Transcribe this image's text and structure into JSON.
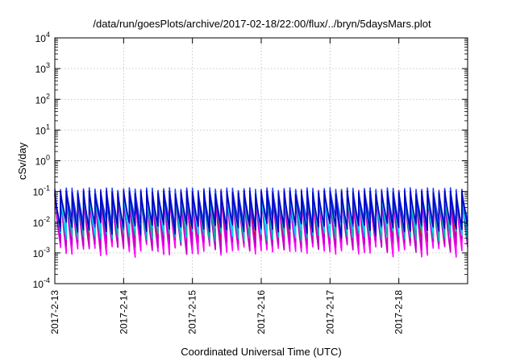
{
  "chart_data": {
    "type": "line",
    "title": "/data/run/goesPlots/archive/2017-02-18/22:00/flux/../bryn/5daysMars.plot",
    "xlabel": "Coordinated Universal Time (UTC)",
    "ylabel": "cSv/day",
    "y_scale": "log",
    "ylim": [
      0.0001,
      10000
    ],
    "y_ticks": [
      {
        "value": 0.0001,
        "base": "10",
        "exp": "-4"
      },
      {
        "value": 0.001,
        "base": "10",
        "exp": "-3"
      },
      {
        "value": 0.01,
        "base": "10",
        "exp": "-2"
      },
      {
        "value": 0.1,
        "base": "10",
        "exp": "-1"
      },
      {
        "value": 1,
        "base": "10",
        "exp": "0"
      },
      {
        "value": 10,
        "base": "10",
        "exp": "1"
      },
      {
        "value": 100,
        "base": "10",
        "exp": "2"
      },
      {
        "value": 1000,
        "base": "10",
        "exp": "3"
      },
      {
        "value": 10000,
        "base": "10",
        "exp": "4"
      }
    ],
    "xlim": [
      "2017-02-13",
      "2017-02-19"
    ],
    "x_ticks": [
      "2017-2-13",
      "2017-2-14",
      "2017-2-15",
      "2017-2-16",
      "2017-2-17",
      "2017-2-18"
    ],
    "grid": true,
    "legend": "none",
    "sawtooth_period_hours": 2,
    "series": [
      {
        "color": "#e60000",
        "peak": 0.11,
        "trough": 0.0025
      },
      {
        "color": "#ff00ff",
        "peak": 0.085,
        "trough": 0.0012
      },
      {
        "color": "#c000c0",
        "peak": 0.07,
        "trough": 0.0018
      },
      {
        "color": "#00b0b0",
        "peak": 0.09,
        "trough": 0.0035
      },
      {
        "color": "#00d0ff",
        "peak": 0.1,
        "trough": 0.006
      },
      {
        "color": "#2040ff",
        "peak": 0.12,
        "trough": 0.009
      },
      {
        "color": "#0000c0",
        "peak": 0.095,
        "trough": 0.0065
      }
    ]
  }
}
